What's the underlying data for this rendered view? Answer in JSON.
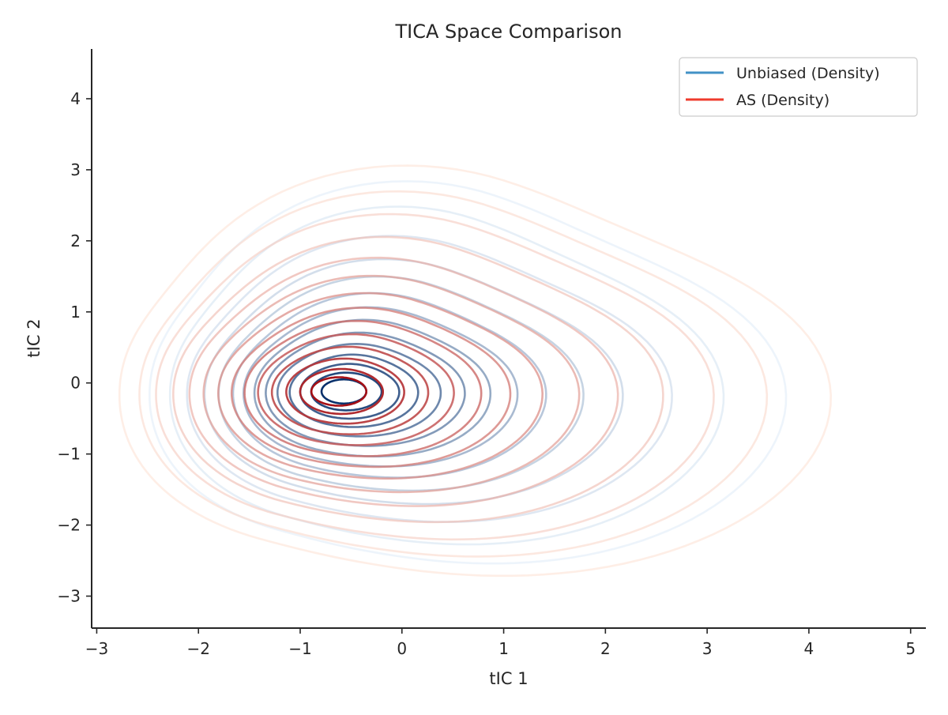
{
  "chart_data": {
    "type": "contour",
    "title": "TICA Space Comparison",
    "xlabel": "tIC 1",
    "ylabel": "tIC 2",
    "xlim": [
      -3.05,
      5.15
    ],
    "ylim": [
      -3.45,
      4.7
    ],
    "xticks": [
      -3,
      -2,
      -1,
      0,
      1,
      2,
      3,
      4,
      5
    ],
    "yticks": [
      -3,
      -2,
      -1,
      0,
      1,
      2,
      3,
      4
    ],
    "xtick_labels": [
      "−3",
      "−2",
      "−1",
      "0",
      "1",
      "2",
      "3",
      "4",
      "5"
    ],
    "ytick_labels": [
      "−3",
      "−2",
      "−1",
      "0",
      "1",
      "2",
      "3",
      "4"
    ],
    "grid": false,
    "legend_position": "top-right",
    "series": [
      {
        "name": "Unbiased (Density)",
        "legend_color": "#4292c6",
        "color_light": "#deebf7",
        "color_dark": "#08306b",
        "center": [
          -0.57,
          -0.12
        ],
        "level_radii": [
          [
            2.55,
            2.05
          ],
          [
            2.25,
            1.85
          ],
          [
            2.0,
            1.6
          ],
          [
            1.75,
            1.4
          ],
          [
            1.55,
            1.25
          ],
          [
            1.35,
            1.1
          ],
          [
            1.2,
            0.97
          ],
          [
            1.05,
            0.85
          ],
          [
            0.9,
            0.72
          ],
          [
            0.75,
            0.6
          ],
          [
            0.6,
            0.48
          ],
          [
            0.47,
            0.37
          ],
          [
            0.34,
            0.26
          ],
          [
            0.22,
            0.17
          ]
        ]
      },
      {
        "name": "AS (Density)",
        "legend_color": "#ef3b2c",
        "color_light": "#fee0d2",
        "color_dark": "#a50f15",
        "center": [
          -0.62,
          -0.12
        ],
        "level_radii": [
          [
            2.85,
            2.2
          ],
          [
            2.55,
            2.0
          ],
          [
            2.3,
            1.82
          ],
          [
            2.05,
            1.63
          ],
          [
            1.82,
            1.45
          ],
          [
            1.62,
            1.29
          ],
          [
            1.42,
            1.13
          ],
          [
            1.24,
            0.99
          ],
          [
            1.07,
            0.86
          ],
          [
            0.9,
            0.72
          ],
          [
            0.73,
            0.58
          ],
          [
            0.56,
            0.44
          ],
          [
            0.4,
            0.31
          ],
          [
            0.27,
            0.2
          ]
        ]
      }
    ]
  }
}
